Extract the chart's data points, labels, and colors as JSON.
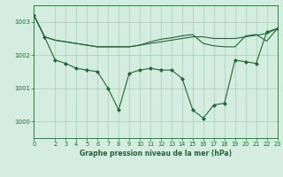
{
  "bg_color": "#d4ede0",
  "grid_color": "#a8ccb8",
  "line_color": "#1a6b2e",
  "marker_color": "#1a6b2e",
  "title": "Graphe pression niveau de la mer (hPa)",
  "xlim": [
    0,
    23
  ],
  "ylim": [
    999.5,
    1003.5
  ],
  "yticks": [
    1000,
    1001,
    1002,
    1003
  ],
  "xticks": [
    0,
    2,
    3,
    4,
    5,
    6,
    7,
    8,
    9,
    10,
    11,
    12,
    13,
    14,
    15,
    16,
    17,
    18,
    19,
    20,
    21,
    22,
    23
  ],
  "series1": {
    "x": [
      0,
      1,
      2,
      3,
      4,
      5,
      6,
      7,
      8,
      9,
      10,
      11,
      12,
      13,
      14,
      15,
      16,
      17,
      18,
      19,
      20,
      21,
      22,
      23
    ],
    "y": [
      1003.2,
      1002.55,
      1002.45,
      1002.4,
      1002.35,
      1002.3,
      1002.25,
      1002.25,
      1002.25,
      1002.25,
      1002.3,
      1002.35,
      1002.4,
      1002.45,
      1002.5,
      1002.55,
      1002.55,
      1002.5,
      1002.5,
      1002.5,
      1002.55,
      1002.6,
      1002.65,
      1002.8
    ]
  },
  "series2": {
    "x": [
      0,
      1,
      2,
      3,
      4,
      5,
      6,
      7,
      8,
      9,
      10,
      11,
      12,
      13,
      14,
      15,
      16,
      17,
      18,
      19,
      20,
      21,
      22,
      23
    ],
    "y": [
      1003.2,
      1002.55,
      1002.45,
      1002.4,
      1002.35,
      1002.3,
      1002.25,
      1002.25,
      1002.25,
      1002.25,
      1002.3,
      1002.4,
      1002.48,
      1002.52,
      1002.58,
      1002.62,
      1002.35,
      1002.28,
      1002.25,
      1002.25,
      1002.58,
      1002.62,
      1002.42,
      1002.8
    ]
  },
  "series_main": {
    "x": [
      0,
      1,
      2,
      3,
      4,
      5,
      6,
      7,
      8,
      9,
      10,
      11,
      12,
      13,
      14,
      15,
      16,
      17,
      18,
      19,
      20,
      21,
      22,
      23
    ],
    "y": [
      1003.2,
      1002.55,
      1001.85,
      1001.75,
      1001.6,
      1001.55,
      1001.5,
      1001.0,
      1000.35,
      1001.45,
      1001.55,
      1001.6,
      1001.55,
      1001.55,
      1001.3,
      1000.35,
      1000.1,
      1000.5,
      1000.55,
      1001.85,
      1001.8,
      1001.75,
      1002.7,
      1002.8
    ]
  }
}
